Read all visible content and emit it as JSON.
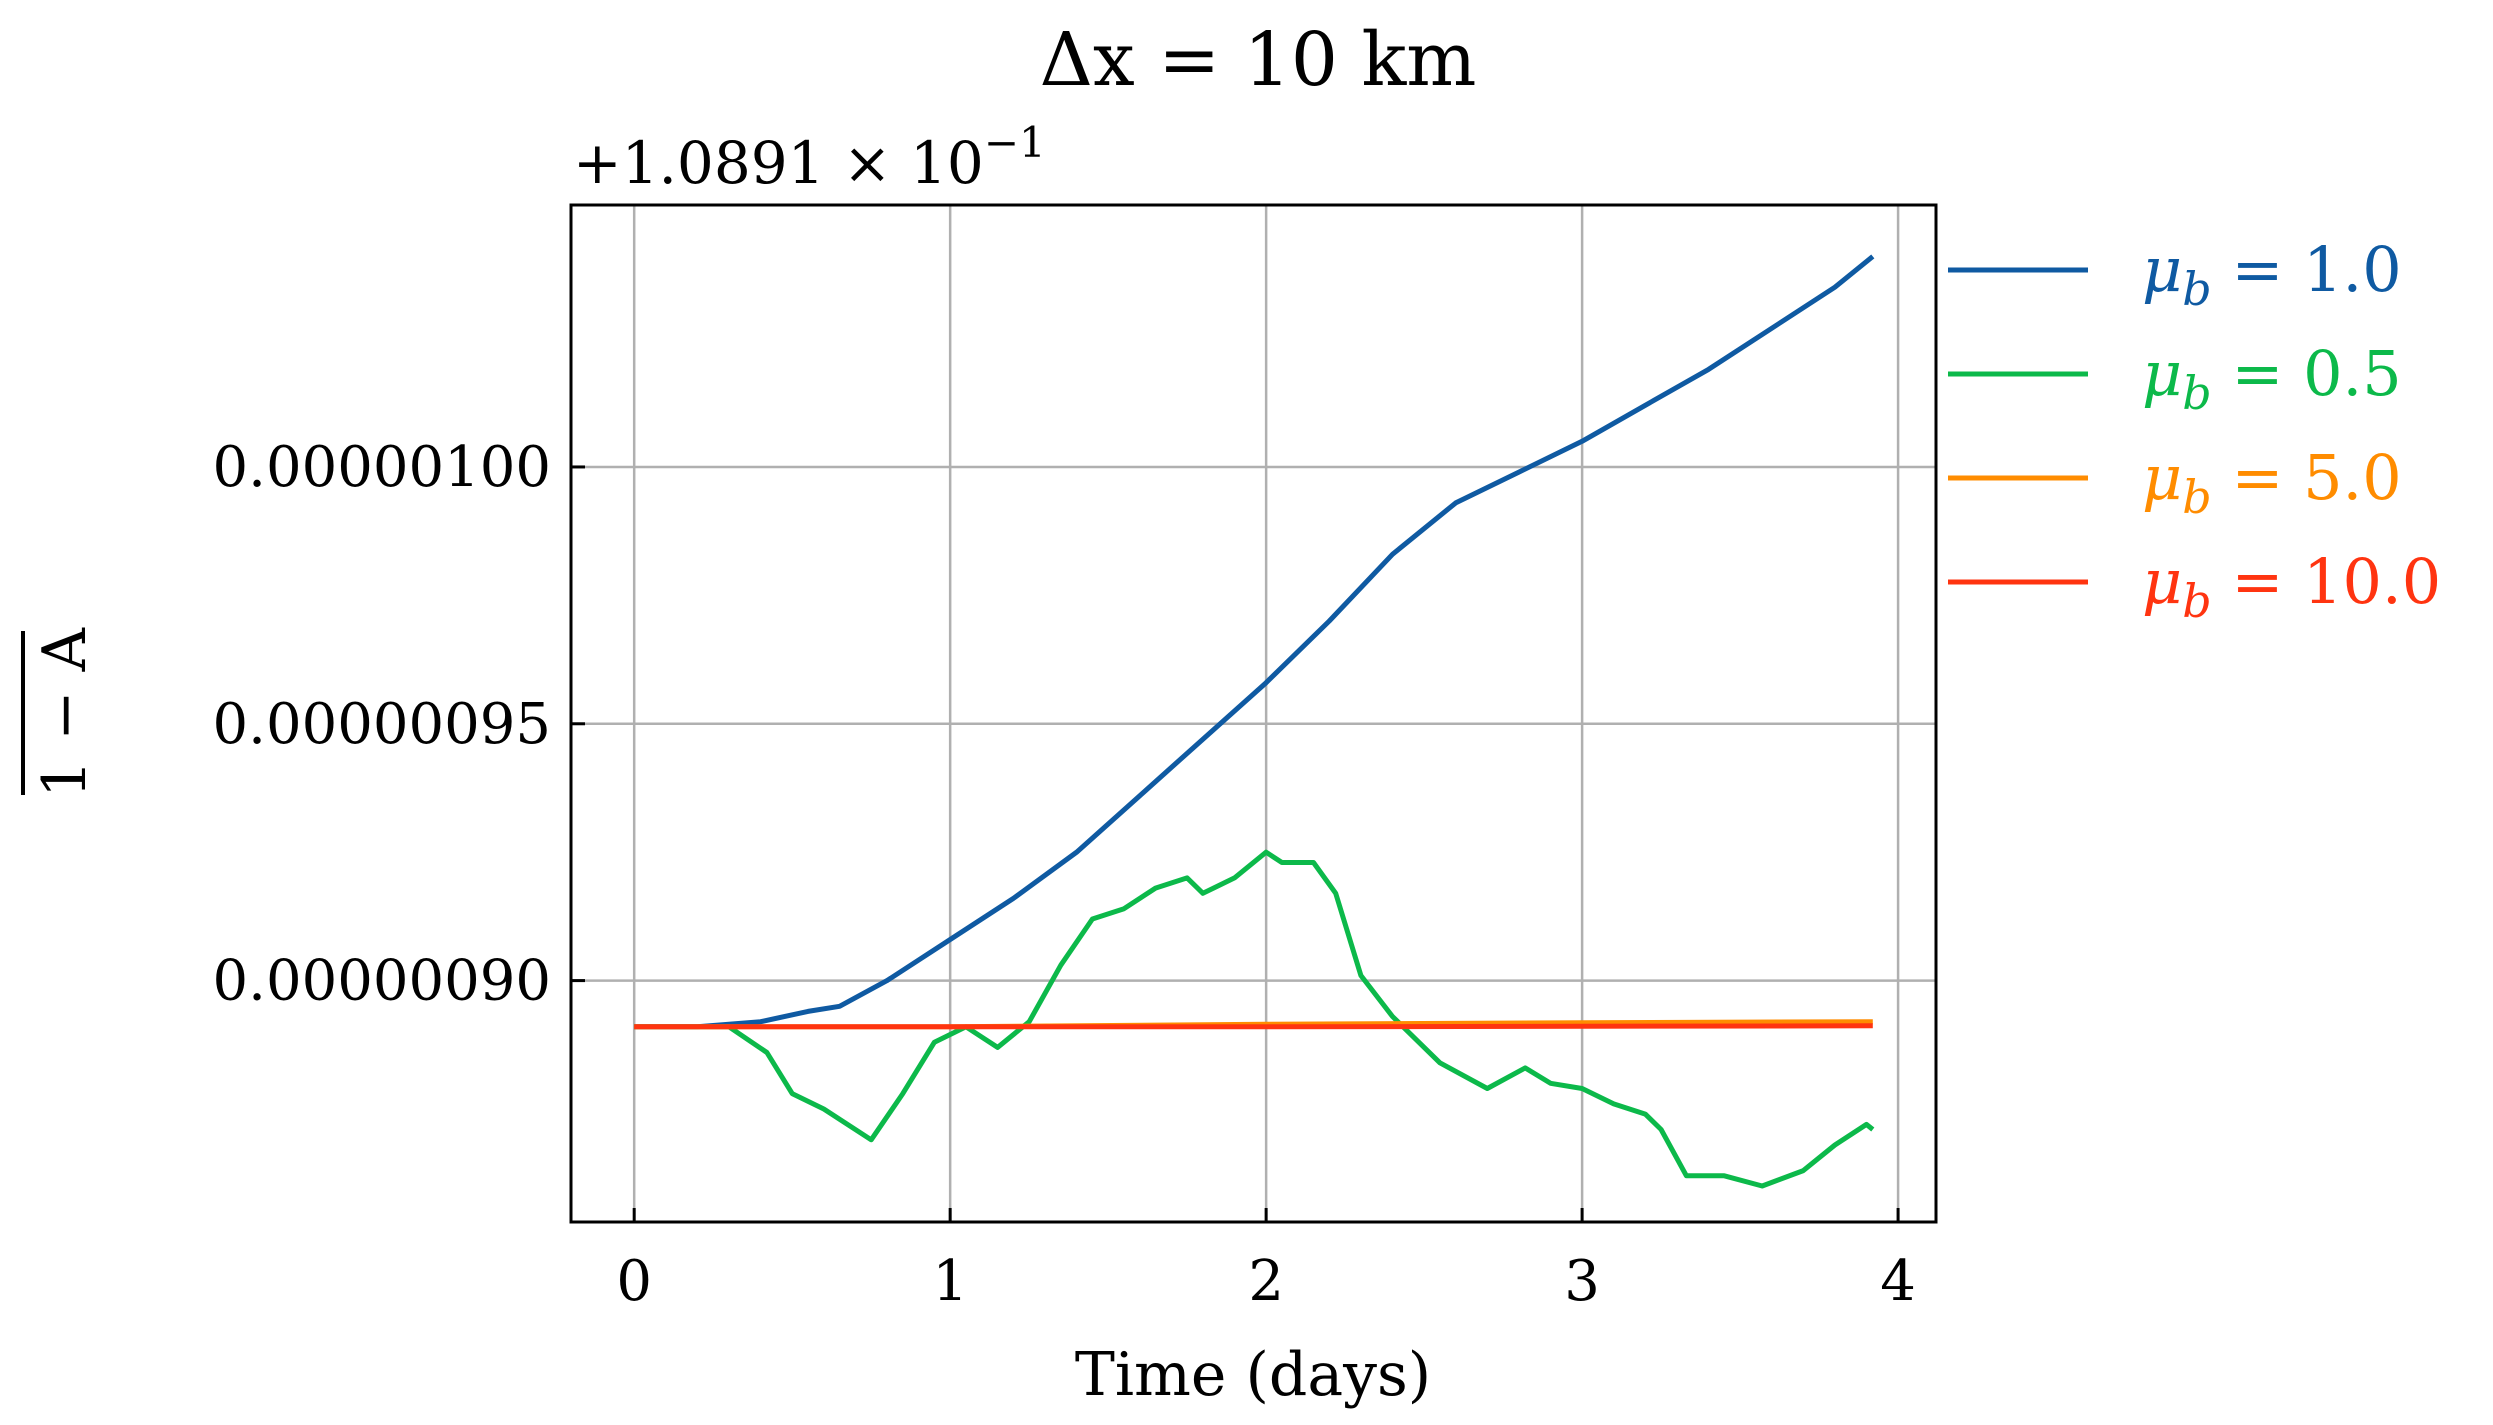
{
  "chart_data": {
    "type": "line",
    "title": "Δx = 10 km",
    "xlabel": "Time (days)",
    "ylabel": "1 − A",
    "offset_text_prefix": "+1.0891 × 10",
    "offset_text_exponent": "−1",
    "xlim": [
      -0.2,
      4.12
    ],
    "ylim": [
      8.53e-07,
      1.051e-06
    ],
    "x_ticks": [
      0,
      1,
      2,
      3,
      4
    ],
    "x_tick_labels": [
      "0",
      "1",
      "2",
      "3",
      "4"
    ],
    "y_ticks": [
      9e-07,
      9.5e-07,
      1e-06
    ],
    "y_tick_labels": [
      "0.00000090",
      "0.00000095",
      "0.00000100"
    ],
    "grid": true,
    "legend_position": "outside right, top",
    "series": [
      {
        "name": "μb = 1.0",
        "name_base": "μ",
        "name_sub": "b",
        "name_value": "= 1.0",
        "color": "#0f5aa2",
        "points": [
          [
            0,
            8.91e-07
          ],
          [
            0.2,
            8.91e-07
          ],
          [
            0.4,
            8.92e-07
          ],
          [
            0.55,
            8.94e-07
          ],
          [
            0.65,
            8.95e-07
          ],
          [
            0.8,
            9e-07
          ],
          [
            1.0,
            9.08e-07
          ],
          [
            1.2,
            9.16e-07
          ],
          [
            1.4,
            9.25e-07
          ],
          [
            1.6,
            9.36e-07
          ],
          [
            1.8,
            9.47e-07
          ],
          [
            2.0,
            9.58e-07
          ],
          [
            2.2,
            9.7e-07
          ],
          [
            2.4,
            9.83e-07
          ],
          [
            2.6,
            9.93e-07
          ],
          [
            2.8,
            9.99e-07
          ],
          [
            3.0,
            1.005e-06
          ],
          [
            3.2,
            1.012e-06
          ],
          [
            3.4,
            1.019e-06
          ],
          [
            3.6,
            1.027e-06
          ],
          [
            3.8,
            1.035e-06
          ],
          [
            3.92,
            1.041e-06
          ]
        ]
      },
      {
        "name": "μb = 0.5",
        "name_base": "μ",
        "name_sub": "b",
        "name_value": "= 0.5",
        "color": "#0cb94a",
        "points": [
          [
            0,
            8.91e-07
          ],
          [
            0.3,
            8.91e-07
          ],
          [
            0.42,
            8.86e-07
          ],
          [
            0.5,
            8.78e-07
          ],
          [
            0.6,
            8.75e-07
          ],
          [
            0.75,
            8.69e-07
          ],
          [
            0.85,
            8.78e-07
          ],
          [
            0.95,
            8.88e-07
          ],
          [
            1.05,
            8.91e-07
          ],
          [
            1.15,
            8.87e-07
          ],
          [
            1.25,
            8.92e-07
          ],
          [
            1.35,
            9.03e-07
          ],
          [
            1.45,
            9.12e-07
          ],
          [
            1.55,
            9.14e-07
          ],
          [
            1.65,
            9.18e-07
          ],
          [
            1.75,
            9.2e-07
          ],
          [
            1.8,
            9.17e-07
          ],
          [
            1.9,
            9.2e-07
          ],
          [
            2.0,
            9.25e-07
          ],
          [
            2.05,
            9.23e-07
          ],
          [
            2.15,
            9.23e-07
          ],
          [
            2.22,
            9.17e-07
          ],
          [
            2.3,
            9.01e-07
          ],
          [
            2.4,
            8.93e-07
          ],
          [
            2.55,
            8.84e-07
          ],
          [
            2.7,
            8.79e-07
          ],
          [
            2.82,
            8.83e-07
          ],
          [
            2.9,
            8.8e-07
          ],
          [
            3.0,
            8.79e-07
          ],
          [
            3.1,
            8.76e-07
          ],
          [
            3.2,
            8.74e-07
          ],
          [
            3.25,
            8.71e-07
          ],
          [
            3.33,
            8.62e-07
          ],
          [
            3.45,
            8.62e-07
          ],
          [
            3.57,
            8.6e-07
          ],
          [
            3.7,
            8.63e-07
          ],
          [
            3.8,
            8.68e-07
          ],
          [
            3.9,
            8.72e-07
          ],
          [
            3.92,
            8.71e-07
          ]
        ]
      },
      {
        "name": "μb = 5.0",
        "name_base": "μ",
        "name_sub": "b",
        "name_value": "= 5.0",
        "color": "#ff8c00",
        "points": [
          [
            0,
            8.91e-07
          ],
          [
            1.0,
            8.91e-07
          ],
          [
            2.0,
            8.915e-07
          ],
          [
            3.0,
            8.918e-07
          ],
          [
            3.92,
            8.92e-07
          ]
        ]
      },
      {
        "name": "μb = 10.0",
        "name_base": "μ",
        "name_sub": "b",
        "name_value": "= 10.0",
        "color": "#ff3410",
        "points": [
          [
            0,
            8.91e-07
          ],
          [
            1.0,
            8.91e-07
          ],
          [
            2.0,
            8.91e-07
          ],
          [
            3.0,
            8.911e-07
          ],
          [
            3.92,
            8.912e-07
          ]
        ]
      }
    ]
  }
}
